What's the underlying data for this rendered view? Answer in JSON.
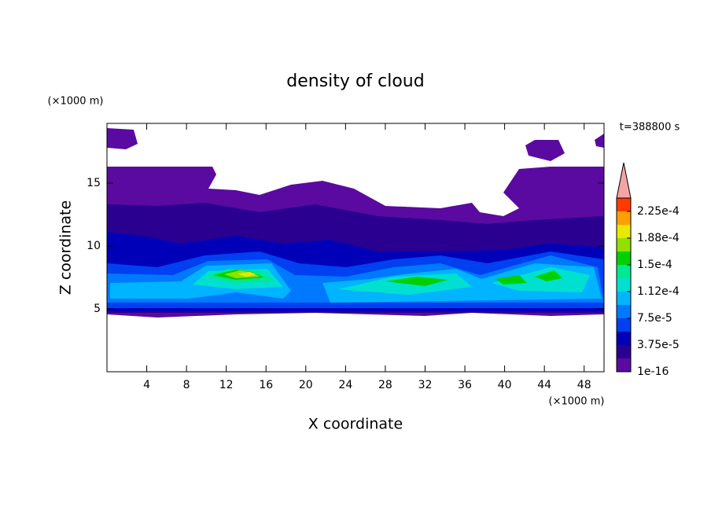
{
  "chart_data": {
    "type": "contour",
    "title": "density of cloud",
    "xlabel": "X coordinate",
    "ylabel": "Z coordinate",
    "x_unit": "(×1000 m)",
    "y_unit": "(×1000 m)",
    "annotation": "t=388800 s",
    "xlim": [
      0,
      50
    ],
    "ylim": [
      0,
      19.75
    ],
    "xticks": [
      4,
      8,
      12,
      16,
      20,
      24,
      28,
      32,
      36,
      40,
      44,
      48
    ],
    "yticks": [
      5,
      10,
      15
    ],
    "colorbar": {
      "levels": [
        1e-16,
        1.875e-05,
        3.75e-05,
        5.625e-05,
        7.5e-05,
        9.375e-05,
        0.0001125,
        0.00013125,
        0.00015,
        0.00016875,
        0.0001875,
        0.00020625,
        0.000225,
        0.00024375
      ],
      "colors": [
        "#5a0aa0",
        "#2a0090",
        "#0000b8",
        "#0040f0",
        "#0078ff",
        "#00b4ff",
        "#00e0d0",
        "#00e890",
        "#00d000",
        "#90e000",
        "#e8e800",
        "#ffa000",
        "#ff3c00"
      ],
      "extend_color": "#f4a4a4",
      "ticks": [
        {
          "value": 1e-16,
          "label": "1e-16"
        },
        {
          "value": 3.75e-05,
          "label": "3.75e-5"
        },
        {
          "value": 7.5e-05,
          "label": "7.5e-5"
        },
        {
          "value": 0.0001125,
          "label": "1.12e-4"
        },
        {
          "value": 0.00015,
          "label": "1.5e-4"
        },
        {
          "value": 0.0001875,
          "label": "1.88e-4"
        },
        {
          "value": 0.000225,
          "label": "2.25e-4"
        }
      ]
    }
  }
}
